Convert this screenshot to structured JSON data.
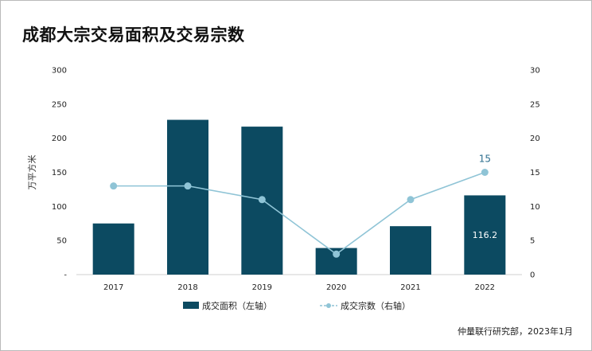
{
  "title": "成都大宗交易面积及交易宗数",
  "source": "仲量联行研究部，2023年1月",
  "colors": {
    "bar": "#0c4a61",
    "line": "#8fc4d6",
    "bar_label": "#ffffff",
    "line_label": "#2d6f8f"
  },
  "chart_data": {
    "type": "bar",
    "categories": [
      "2017",
      "2018",
      "2019",
      "2020",
      "2021",
      "2022"
    ],
    "series": [
      {
        "name": "成交面积（左轴）",
        "type": "bar",
        "axis": "left",
        "values": [
          75,
          227,
          217,
          39,
          71,
          116.2
        ]
      },
      {
        "name": "成交宗数（右轴）",
        "type": "line",
        "axis": "right",
        "values": [
          13,
          13,
          11,
          3,
          11,
          15
        ]
      }
    ],
    "data_labels": [
      {
        "series": 0,
        "index": 5,
        "text": "116.2"
      },
      {
        "series": 1,
        "index": 5,
        "text": "15"
      }
    ],
    "ylabel": "万平方米",
    "y_left": {
      "lim": [
        0,
        300
      ],
      "ticks": [
        "-",
        "50",
        "100",
        "150",
        "200",
        "250",
        "300"
      ]
    },
    "y_right": {
      "lim": [
        0,
        30
      ],
      "ticks": [
        "0",
        "5",
        "10",
        "15",
        "20",
        "25",
        "30"
      ]
    },
    "grid": false,
    "legend_position": "bottom"
  }
}
